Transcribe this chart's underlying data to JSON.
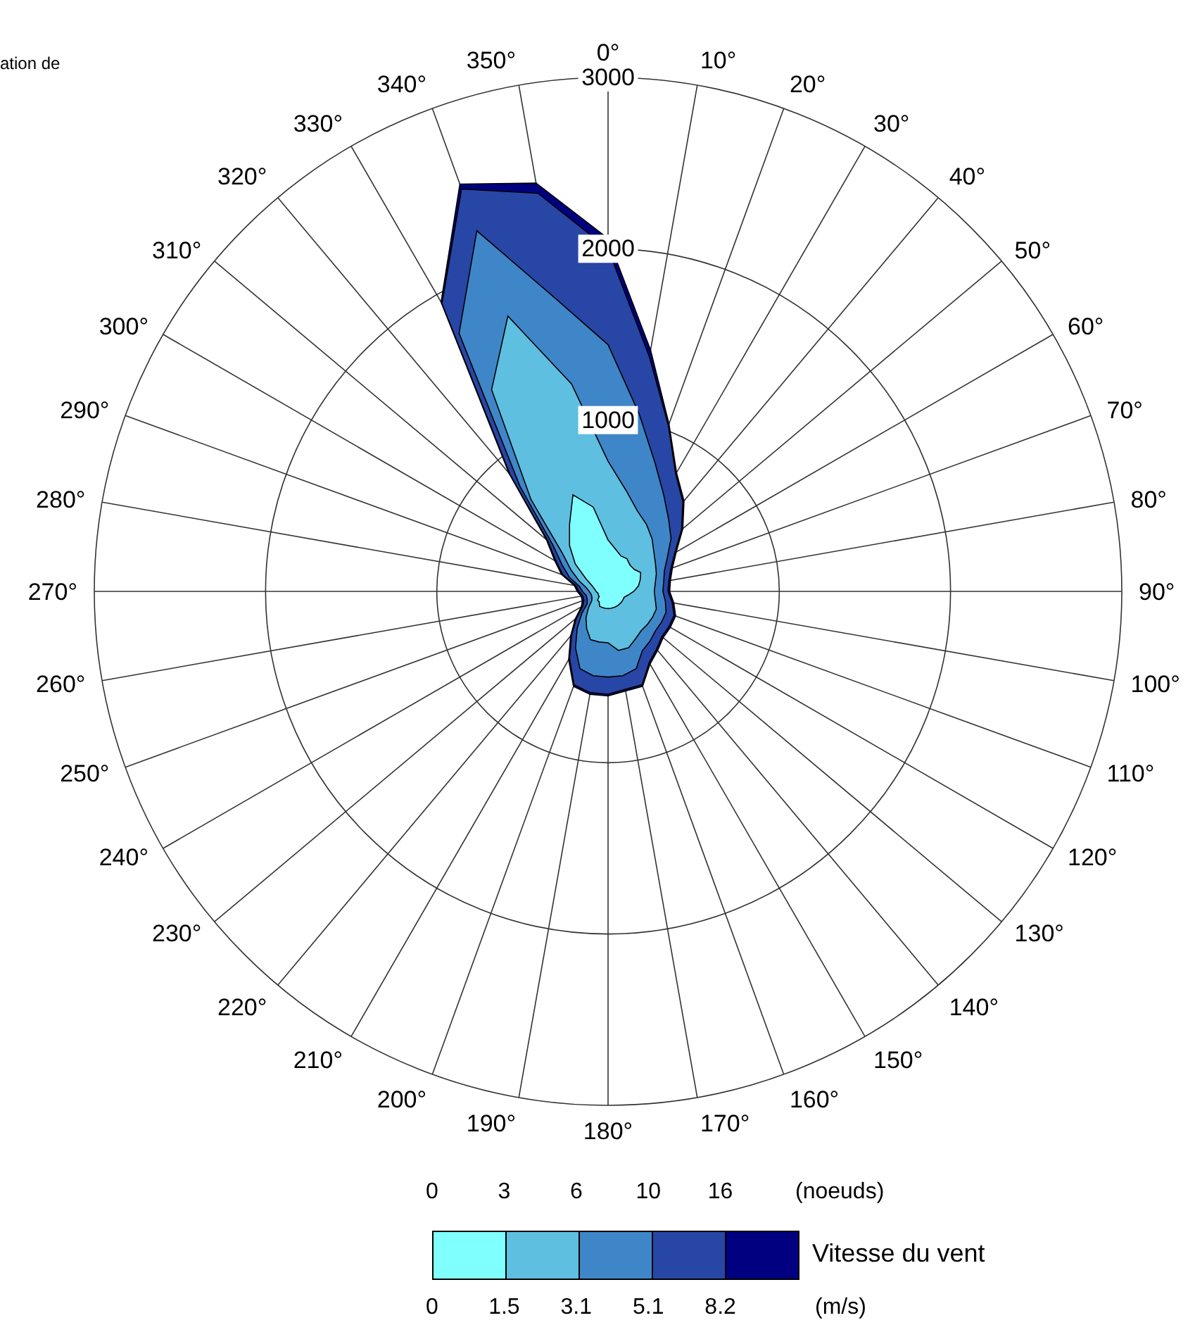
{
  "chart_data": {
    "type": "radar",
    "title": "ation de",
    "categories": [
      "0°",
      "10°",
      "20°",
      "30°",
      "40°",
      "50°",
      "60°",
      "70°",
      "80°",
      "90°",
      "100°",
      "110°",
      "120°",
      "130°",
      "140°",
      "150°",
      "160°",
      "170°",
      "180°",
      "190°",
      "200°",
      "210°",
      "220°",
      "230°",
      "240°",
      "250°",
      "260°",
      "270°",
      "280°",
      "290°",
      "300°",
      "310°",
      "320°",
      "330°",
      "340°",
      "350°"
    ],
    "series": [
      {
        "color": "#80ffff",
        "values": [
          300,
          250,
          220,
          220,
          200,
          200,
          220,
          200,
          180,
          150,
          120,
          100,
          100,
          100,
          100,
          100,
          100,
          100,
          100,
          100,
          100,
          100,
          80,
          80,
          60,
          60,
          60,
          70,
          80,
          100,
          150,
          250,
          350,
          450,
          600,
          500
        ]
      },
      {
        "color": "#5ebfe0",
        "values": [
          760,
          600,
          500,
          450,
          400,
          350,
          320,
          300,
          280,
          270,
          280,
          300,
          300,
          300,
          300,
          320,
          350,
          350,
          300,
          300,
          300,
          250,
          200,
          150,
          110,
          100,
          100,
          110,
          130,
          180,
          250,
          350,
          700,
          1360,
          1710,
          1230
        ]
      },
      {
        "color": "#3f86c8",
        "values": [
          1440,
          1050,
          800,
          650,
          550,
          480,
          400,
          350,
          330,
          320,
          340,
          360,
          360,
          360,
          380,
          400,
          480,
          500,
          500,
          500,
          480,
          380,
          280,
          200,
          140,
          130,
          130,
          150,
          170,
          240,
          310,
          420,
          800,
          1740,
          2240,
          1730
        ]
      },
      {
        "color": "#2746a6",
        "values": [
          2000,
          1390,
          1030,
          790,
          680,
          560,
          450,
          390,
          360,
          350,
          380,
          410,
          410,
          410,
          440,
          480,
          580,
          580,
          600,
          600,
          580,
          450,
          330,
          240,
          170,
          150,
          150,
          170,
          190,
          280,
          350,
          460,
          890,
          1940,
          2500,
          2360
        ]
      },
      {
        "color": "#000080",
        "values": [
          2060,
          1430,
          1040,
          800,
          690,
          570,
          460,
          400,
          370,
          360,
          390,
          420,
          420,
          420,
          450,
          490,
          590,
          590,
          610,
          610,
          590,
          460,
          340,
          250,
          180,
          160,
          160,
          180,
          200,
          290,
          360,
          470,
          900,
          1950,
          2530,
          2420
        ]
      }
    ],
    "ylim": [
      0,
      3000
    ],
    "yticks": [
      1000,
      2000,
      3000
    ],
    "grid": true,
    "clabel": "Vitesse du vent",
    "annotations": [
      "0",
      "3",
      "6",
      "10",
      "16",
      "(noeuds)",
      "0",
      "1.5",
      "3.1",
      "5.1",
      "8.2",
      "(m/s)"
    ]
  }
}
